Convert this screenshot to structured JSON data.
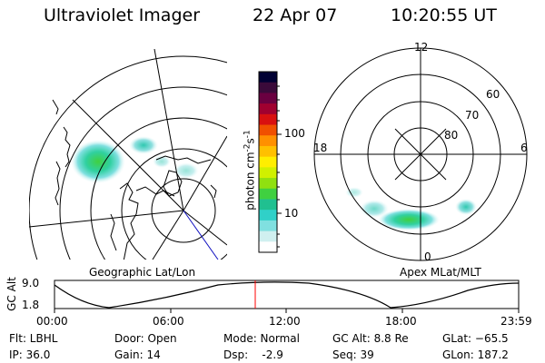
{
  "header": {
    "instrument": "Ultraviolet Imager",
    "date": "22 Apr 07",
    "time": "10:20:55 UT"
  },
  "colorbar": {
    "unit_label": "photon cm",
    "unit_exp1": "-2",
    "unit_mid": "s",
    "unit_exp2": "-1",
    "ticks": [
      "100",
      "10"
    ],
    "colors": [
      "#000033",
      "#3a0a3a",
      "#6a0040",
      "#a00030",
      "#d81010",
      "#f05000",
      "#ff9000",
      "#ffc000",
      "#ffee00",
      "#d0f000",
      "#90e010",
      "#40d040",
      "#20c090",
      "#30d0c8",
      "#80e0e0",
      "#d0f0f0",
      "#ffffff"
    ]
  },
  "left_map": {
    "label": "Geographic Lat/Lon"
  },
  "right_map": {
    "label": "Apex MLat/MLT",
    "mlt_labels": {
      "top": "12",
      "left": "18",
      "right": "6",
      "bottom": "0"
    },
    "lat_labels": [
      "60",
      "70",
      "80"
    ]
  },
  "timeline": {
    "axis_label": "GC Alt",
    "y_ticks": [
      "9.0",
      "1.8"
    ],
    "x_ticks": [
      "00:00",
      "06:00",
      "12:00",
      "18:00",
      "23:59"
    ],
    "current_marker_color": "#ff0000"
  },
  "footer": {
    "flt": "Flt: LBHL",
    "ip": "IP: 36.0",
    "door": "Door: Open",
    "gain": "Gain: 14",
    "mode": "Mode: Normal",
    "dsp": "Dsp:    -2.9",
    "gc_alt": "GC Alt: 8.8 Re",
    "seq": "Seq: 39",
    "glat": "GLat: −65.5",
    "glon": "GLon: 187.2"
  }
}
